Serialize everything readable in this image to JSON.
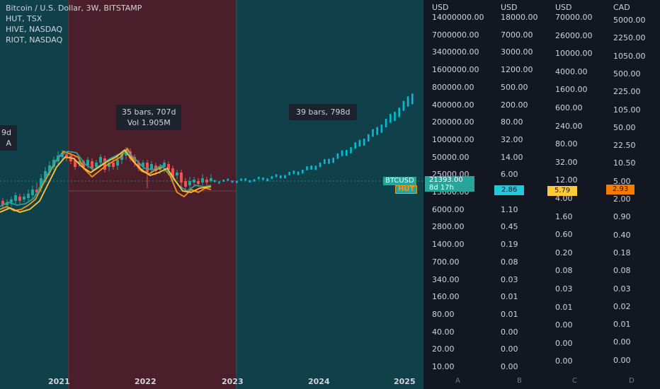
{
  "legend": {
    "lines": [
      "Bitcoin / U.S. Dollar, 3W, BITSTAMP",
      "HUT, TSX",
      "HIVE, NASDAQ",
      "RIOT, NASDAQ"
    ]
  },
  "tooltips": {
    "left_partial": [
      "9d",
      "A"
    ],
    "range1": [
      "35 bars, 707d",
      "Vol 1.905M"
    ],
    "range2": [
      "39 bars, 798d"
    ]
  },
  "time_axis": [
    "2021",
    "2022",
    "2023",
    "2024",
    "2025"
  ],
  "axes": [
    {
      "unit": "USD",
      "letter": "A",
      "ticks": [
        "14000000.00",
        "7000000.00",
        "3400000.00",
        "1600000.00",
        "800000.00",
        "400000.00",
        "200000.00",
        "100000.00",
        "50000.00",
        "25000.00",
        "13000.00",
        "6000.00",
        "2800.00",
        "1400.00",
        "700.00",
        "340.00",
        "160.00",
        "80.00",
        "40.00",
        "20.00",
        "10.00"
      ]
    },
    {
      "unit": "USD",
      "letter": "B",
      "ticks": [
        "18000.00",
        "7000.00",
        "3000.00",
        "1200.00",
        "500.00",
        "200.00",
        "80.00",
        "32.00",
        "14.00",
        "6.00",
        "2.86",
        "1.10",
        "0.45",
        "0.19",
        "0.08",
        "0.03",
        "0.01",
        "0.01",
        "0.00",
        "0.00",
        "0.00"
      ]
    },
    {
      "unit": "USD",
      "letter": "C",
      "ticks": [
        "70000.00",
        "26000.00",
        "10000.00",
        "4000.00",
        "1600.00",
        "600.00",
        "240.00",
        "80.00",
        "32.00",
        "12.00",
        "4.00",
        "1.60",
        "0.60",
        "0.20",
        "0.08",
        "0.03",
        "0.01",
        "0.00",
        "0.00",
        "0.00"
      ]
    },
    {
      "unit": "CAD",
      "letter": "D",
      "ticks": [
        "5000.00",
        "2250.00",
        "1050.00",
        "500.00",
        "225.00",
        "105.00",
        "50.00",
        "22.50",
        "10.50",
        "5.00",
        "2.00",
        "0.90",
        "0.40",
        "0.18",
        "0.08",
        "0.03",
        "0.02",
        "0.01",
        "0.00",
        "0.00"
      ]
    }
  ],
  "price_tags": {
    "btc_symbol": "BTCUSD",
    "btc_price": "21393.00",
    "hut_symbol": "HUT",
    "countdown": "8d 17h",
    "b_value": "2.86",
    "c_value": "5.79",
    "d_value": "2.93"
  },
  "colors": {
    "background": "#131722",
    "range1_fill": "#4a1f2b",
    "range2_fill": "#10404a",
    "bull": "#26a69a",
    "bear": "#ef5350",
    "projection": "#00bcd4",
    "hut": "#f7931a",
    "hive": "#26a69a",
    "riot": "#ffc93c",
    "d_tag": "#f57c00"
  },
  "chart_data": {
    "type": "candlestick",
    "scale": "log",
    "series": [
      {
        "name": "Bitcoin / U.S. Dollar, 3W, BITSTAMP"
      },
      {
        "name": "HUT, TSX"
      },
      {
        "name": "HIVE, NASDAQ"
      },
      {
        "name": "RIOT, NASDAQ"
      }
    ],
    "ranges": [
      {
        "bars": 35,
        "days": 707,
        "volume": "1.905M"
      },
      {
        "bars": 39,
        "days": 798
      }
    ],
    "last_price": 21393.0
  }
}
